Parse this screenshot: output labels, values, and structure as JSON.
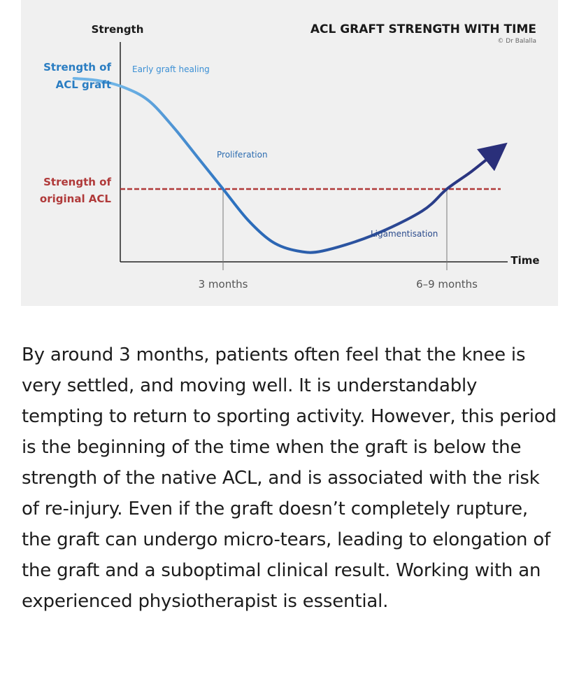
{
  "chart_data": {
    "type": "line",
    "title": "ACL GRAFT STRENGTH WITH TIME",
    "credit": "© Dr Balalla",
    "ylabel": "Strength",
    "xlabel": "Time",
    "y_reference_labels": {
      "graft": [
        "Strength of",
        "ACL graft"
      ],
      "original": [
        "Strength of",
        "original ACL"
      ]
    },
    "x_ticks": [
      {
        "label": "3 months",
        "value": 3
      },
      {
        "label": "6–9 months",
        "value": 7.5
      }
    ],
    "phases": [
      "Early graft healing",
      "Proliferation",
      "Ligamentisation"
    ],
    "reference_line": {
      "name": "Strength of original ACL",
      "value": 0.5,
      "style": "dashed"
    },
    "curve": {
      "x": [
        0,
        0.5,
        1.0,
        1.5,
        2.0,
        2.5,
        3.0,
        3.5,
        4.0,
        4.5,
        5.0,
        6.0,
        7.0,
        7.5,
        8.0,
        8.5
      ],
      "y": [
        1.0,
        0.99,
        0.96,
        0.9,
        0.78,
        0.64,
        0.5,
        0.36,
        0.26,
        0.22,
        0.22,
        0.29,
        0.4,
        0.5,
        0.58,
        0.67
      ]
    },
    "xlim": [
      0,
      9.5
    ],
    "ylim": [
      0,
      1.1
    ],
    "colors": {
      "curve_start": "#6fb4e6",
      "curve_mid": "#2c72c0",
      "curve_end": "#2a2f7a",
      "reference_line": "#b03a3a",
      "graft_label": "#2a7dc2",
      "original_label": "#b03a3a",
      "phase_early": "#3b8fd4",
      "phase_prolif": "#2c6cb0",
      "phase_ligament": "#2a4a8c",
      "panel_bg": "#f0f0f0"
    }
  },
  "body": {
    "paragraph": "By around 3 months, patients often feel that the knee is very settled, and moving well. It is understandably tempting to return to sporting activity. However, this period is the beginning of the time when the graft is below the strength of the native ACL, and is associated with the risk of re-injury. Even if the graft doesn’t completely rupture, the graft can undergo micro-tears, leading to elongation of the graft and a suboptimal clinical result. Working with an experienced physiotherapist is essential."
  }
}
